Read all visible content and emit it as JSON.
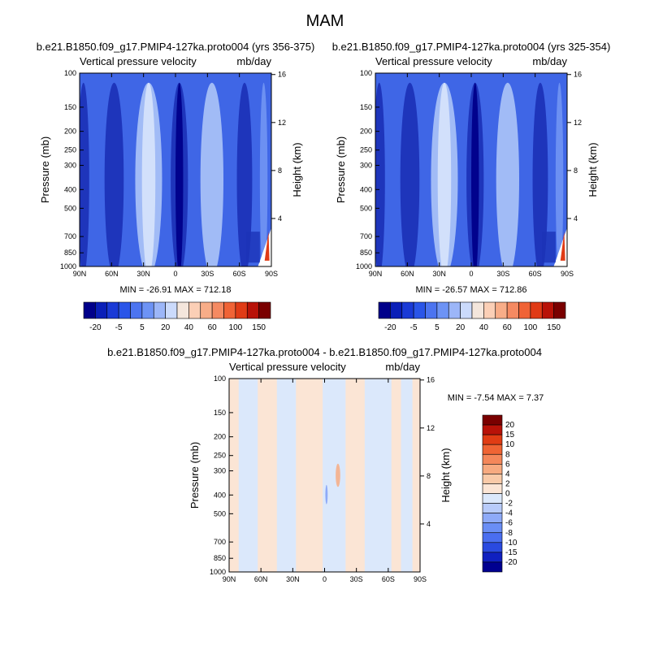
{
  "season_title": "MAM",
  "colors": {
    "scale": [
      "#00008a",
      "#0a1fb8",
      "#1a3ad6",
      "#2a55e8",
      "#4c74f0",
      "#6d93f5",
      "#9cb6f8",
      "#cbdafb",
      "#f4e6dc",
      "#fbcfb6",
      "#f8ad88",
      "#f58a62",
      "#f06336",
      "#e03b16",
      "#b81208",
      "#7a0000"
    ],
    "diff_scale": [
      "#000090",
      "#1020c0",
      "#2a4ae0",
      "#4a6ef0",
      "#6a8ef5",
      "#8eaaf8",
      "#b8cbfa",
      "#dbe8fb",
      "#fbe5d5",
      "#f9caa8",
      "#f7aa80",
      "#f4875a",
      "#ef6434",
      "#e03c14",
      "#b81208",
      "#7a0000"
    ],
    "fill_base": "#3f66e6",
    "fill_light": "#a7c0f7",
    "fill_mid": "#6f92f2",
    "fill_dark": "#1c33b8",
    "diff_blue": "#dbe8fb",
    "diff_pink": "#fbe5d5",
    "axis": "#000000"
  },
  "panels": {
    "top_left": {
      "case_title": "b.e21.B1850.f09_g17.PMIP4-127ka.proto004 (yrs 356-375)",
      "var_label": "Vertical pressure velocity",
      "units": "mb/day",
      "min_max": "MIN = -26.91   MAX = 712.18"
    },
    "top_right": {
      "case_title": "b.e21.B1850.f09_g17.PMIP4-127ka.proto004 (yrs 325-354)",
      "var_label": "Vertical pressure velocity",
      "units": "mb/day",
      "min_max": "MIN = -26.57   MAX = 712.86"
    },
    "bottom": {
      "case_title": "b.e21.B1850.f09_g17.PMIP4-127ka.proto004 - b.e21.B1850.f09_g17.PMIP4-127ka.proto004",
      "var_label": "Vertical pressure velocity",
      "units": "mb/day",
      "min_max": "MIN =  -7.54   MAX =   7.37"
    }
  },
  "chart_data": [
    {
      "type": "heatmap",
      "title": "b.e21.B1850.f09_g17.PMIP4-127ka.proto004 (yrs 356-375)",
      "subtitle_left": "Vertical pressure velocity",
      "subtitle_right": "mb/day",
      "xlabel": "",
      "ylabel": "Pressure (mb)",
      "y2label": "Height (km)",
      "x_ticks": [
        "90N",
        "60N",
        "30N",
        "0",
        "30S",
        "60S",
        "90S"
      ],
      "y_ticks": [
        "100",
        "150",
        "200",
        "250",
        "300",
        "400",
        "500",
        "700",
        "850",
        "1000"
      ],
      "y2_ticks": [
        "16",
        "12",
        "8",
        "4"
      ],
      "colorbar_labels": [
        "-20",
        "-5",
        "5",
        "20",
        "40",
        "60",
        "100",
        "150"
      ],
      "min": -26.91,
      "max": 712.18
    },
    {
      "type": "heatmap",
      "title": "b.e21.B1850.f09_g17.PMIP4-127ka.proto004 (yrs 325-354)",
      "subtitle_left": "Vertical pressure velocity",
      "subtitle_right": "mb/day",
      "xlabel": "",
      "ylabel": "Pressure (mb)",
      "y2label": "Height (km)",
      "x_ticks": [
        "90N",
        "60N",
        "30N",
        "0",
        "30S",
        "60S",
        "90S"
      ],
      "y_ticks": [
        "100",
        "150",
        "200",
        "250",
        "300",
        "400",
        "500",
        "700",
        "850",
        "1000"
      ],
      "y2_ticks": [
        "16",
        "12",
        "8",
        "4"
      ],
      "colorbar_labels": [
        "-20",
        "-5",
        "5",
        "20",
        "40",
        "60",
        "100",
        "150"
      ],
      "min": -26.57,
      "max": 712.86
    },
    {
      "type": "heatmap",
      "title": "b.e21.B1850.f09_g17.PMIP4-127ka.proto004 - b.e21.B1850.f09_g17.PMIP4-127ka.proto004",
      "subtitle_left": "Vertical pressure velocity",
      "subtitle_right": "mb/day",
      "xlabel": "",
      "ylabel": "Pressure (mb)",
      "y2label": "Height (km)",
      "x_ticks": [
        "90N",
        "60N",
        "30N",
        "0",
        "30S",
        "60S",
        "90S"
      ],
      "y_ticks": [
        "100",
        "150",
        "200",
        "250",
        "300",
        "400",
        "500",
        "700",
        "850",
        "1000"
      ],
      "y2_ticks": [
        "16",
        "12",
        "8",
        "4"
      ],
      "colorbar_labels": [
        "20",
        "15",
        "10",
        "8",
        "6",
        "4",
        "2",
        "0",
        "-2",
        "-4",
        "-6",
        "-8",
        "-10",
        "-15",
        "-20"
      ],
      "min": -7.54,
      "max": 7.37
    }
  ]
}
